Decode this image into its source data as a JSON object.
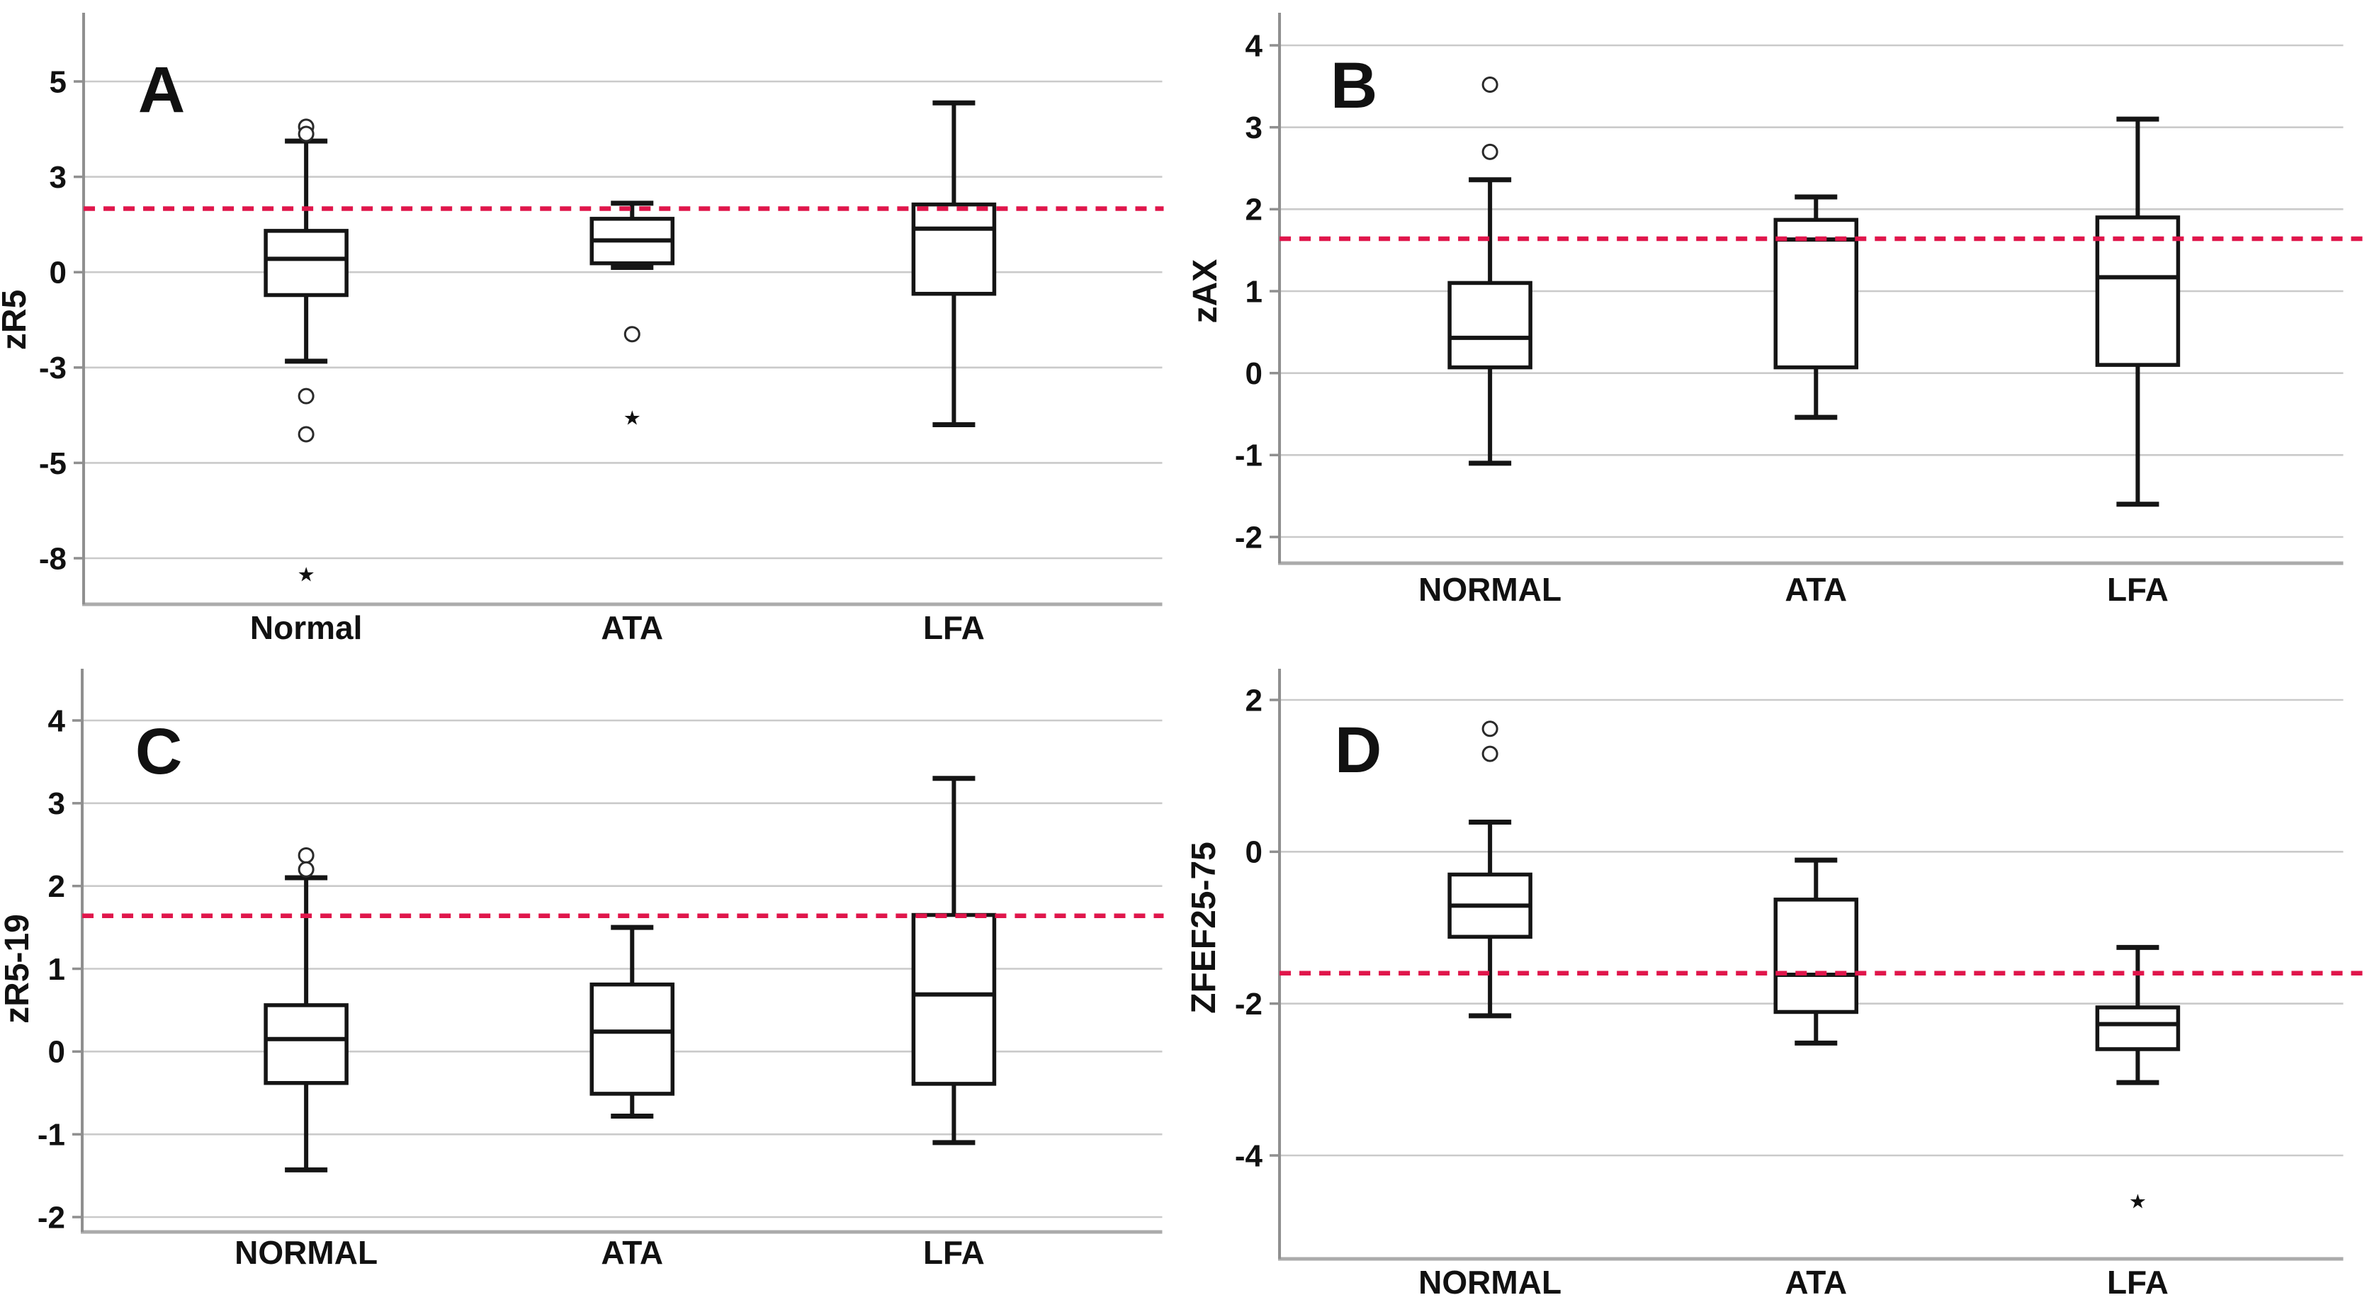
{
  "figure": {
    "background": "#ffffff",
    "description_colors": {
      "reference_line": "#e0164b",
      "gridline": "#cacaca",
      "baseline": "#ababab",
      "axis": "#8f8f8f",
      "box_stroke": "#151515",
      "text": "#111111"
    }
  },
  "chart_data": [
    {
      "type": "box",
      "panel_letter": "A",
      "ylabel": "zR5",
      "yticks": [
        5,
        3,
        0,
        -3,
        -5,
        -8
      ],
      "categories": [
        "Normal",
        "ATA",
        "LFA"
      ],
      "grid": true,
      "legend": "none",
      "reference_line": {
        "value": 2.0,
        "style": "dashed",
        "color": "#e0164b"
      },
      "boxes": [
        {
          "category": "Normal",
          "whisker_low": -2.8,
          "q1": -0.72,
          "median": 0.42,
          "q3": 1.3,
          "whisker_high": 3.75,
          "outliers_circles": [
            4.05,
            3.9,
            -3.6,
            -4.4
          ],
          "outliers_stars": [
            -8.5
          ]
        },
        {
          "category": "ATA",
          "whisker_low": 0.15,
          "q1": 0.28,
          "median": 1.0,
          "q3": 1.68,
          "whisker_high": 2.17,
          "outliers_circles": [
            -1.95
          ],
          "outliers_stars": [
            -4.05
          ]
        },
        {
          "category": "LFA",
          "whisker_low": -4.2,
          "q1": -0.68,
          "median": 1.37,
          "q3": 2.13,
          "whisker_high": 4.55,
          "outliers_circles": [],
          "outliers_stars": []
        }
      ]
    },
    {
      "type": "box",
      "panel_letter": "B",
      "ylabel": "zAX",
      "yticks": [
        4,
        3,
        2,
        1,
        0,
        -1,
        -2
      ],
      "categories": [
        "NORMAL",
        "ATA",
        "LFA"
      ],
      "grid": true,
      "legend": "none",
      "reference_line": {
        "value": 1.64,
        "style": "dashed",
        "color": "#e0164b"
      },
      "boxes": [
        {
          "category": "NORMAL",
          "whisker_low": -1.1,
          "q1": 0.07,
          "median": 0.43,
          "q3": 1.1,
          "whisker_high": 2.36,
          "outliers_circles": [
            3.52,
            2.7
          ],
          "outliers_stars": []
        },
        {
          "category": "ATA",
          "whisker_low": -0.54,
          "q1": 0.07,
          "median": 1.63,
          "q3": 1.87,
          "whisker_high": 2.15,
          "outliers_circles": [],
          "outliers_stars": []
        },
        {
          "category": "LFA",
          "whisker_low": -1.6,
          "q1": 0.1,
          "median": 1.17,
          "q3": 1.9,
          "whisker_high": 3.1,
          "outliers_circles": [],
          "outliers_stars": []
        }
      ]
    },
    {
      "type": "box",
      "panel_letter": "C",
      "ylabel": "zR5-19",
      "yticks": [
        4,
        3,
        2,
        1,
        0,
        -1,
        -2
      ],
      "categories": [
        "NORMAL",
        "ATA",
        "LFA"
      ],
      "grid": true,
      "legend": "none",
      "reference_line": {
        "value": 1.64,
        "style": "dashed",
        "color": "#e0164b"
      },
      "boxes": [
        {
          "category": "NORMAL",
          "whisker_low": -1.43,
          "q1": -0.38,
          "median": 0.15,
          "q3": 0.56,
          "whisker_high": 2.1,
          "outliers_circles": [
            2.37,
            2.2
          ],
          "outliers_stars": []
        },
        {
          "category": "ATA",
          "whisker_low": -0.78,
          "q1": -0.51,
          "median": 0.24,
          "q3": 0.81,
          "whisker_high": 1.5,
          "outliers_circles": [],
          "outliers_stars": []
        },
        {
          "category": "LFA",
          "whisker_low": -1.1,
          "q1": -0.39,
          "median": 0.69,
          "q3": 1.65,
          "whisker_high": 3.3,
          "outliers_circles": [],
          "outliers_stars": []
        }
      ]
    },
    {
      "type": "box",
      "panel_letter": "D",
      "ylabel": "ZFEF25-75",
      "yticks": [
        2,
        0,
        -2,
        -4
      ],
      "categories": [
        "NORMAL",
        "ATA",
        "LFA"
      ],
      "grid": true,
      "legend": "none",
      "reference_line": {
        "value": -1.6,
        "style": "dashed",
        "color": "#e0164b"
      },
      "boxes": [
        {
          "category": "NORMAL",
          "whisker_low": -2.16,
          "q1": -1.12,
          "median": -0.71,
          "q3": -0.3,
          "whisker_high": 0.39,
          "outliers_circles": [
            1.62,
            1.29
          ],
          "outliers_stars": []
        },
        {
          "category": "ATA",
          "whisker_low": -2.52,
          "q1": -2.11,
          "median": -1.62,
          "q3": -0.63,
          "whisker_high": -0.11,
          "outliers_circles": [],
          "outliers_stars": []
        },
        {
          "category": "LFA",
          "whisker_low": -3.04,
          "q1": -2.6,
          "median": -2.27,
          "q3": -2.05,
          "whisker_high": -1.26,
          "outliers_circles": [],
          "outliers_stars": [
            -4.6
          ]
        }
      ]
    }
  ]
}
